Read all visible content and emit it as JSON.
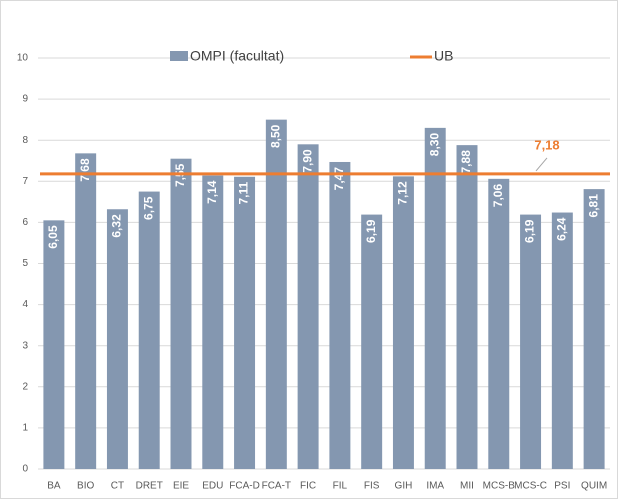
{
  "chart_data": {
    "type": "bar",
    "categories": [
      "BA",
      "BIO",
      "CT",
      "DRET",
      "EIE",
      "EDU",
      "FCA-D",
      "FCA-T",
      "FIC",
      "FIL",
      "FIS",
      "GIH",
      "IMA",
      "MII",
      "MCS-B",
      "MCS-C",
      "PSI",
      "QUIM"
    ],
    "series": [
      {
        "name": "OMPI (facultat)",
        "color": "#8497b0",
        "values": [
          6.05,
          7.68,
          6.32,
          6.75,
          7.55,
          7.14,
          7.11,
          8.5,
          7.9,
          7.47,
          6.19,
          7.12,
          8.3,
          7.88,
          7.06,
          6.19,
          6.24,
          6.81
        ],
        "value_labels": [
          "6,05",
          "7,68",
          "6,32",
          "6,75",
          "7,55",
          "7,14",
          "7,11",
          "8,50",
          "7,90",
          "7,47",
          "6,19",
          "7,12",
          "8,30",
          "7,88",
          "7,06",
          "6,19",
          "6,24",
          "6,81"
        ]
      }
    ],
    "reference_line": {
      "name": "UB",
      "value": 7.18,
      "label": "7,18",
      "color": "#ed7d31"
    },
    "ylim": [
      0,
      10
    ],
    "yticks": [
      0,
      1,
      2,
      3,
      4,
      5,
      6,
      7,
      8,
      9,
      10
    ],
    "grid": true
  }
}
